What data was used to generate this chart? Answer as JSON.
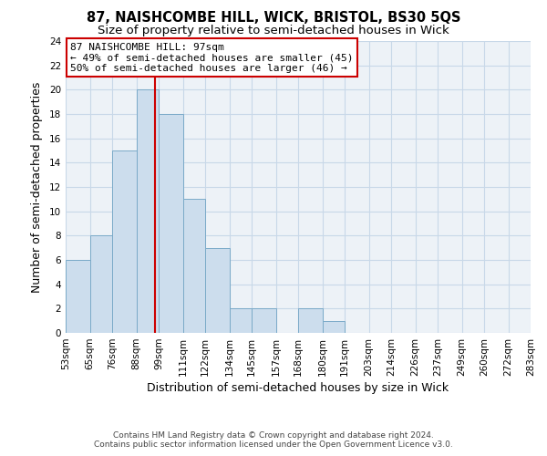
{
  "title_line1": "87, NAISHCOMBE HILL, WICK, BRISTOL, BS30 5QS",
  "title_line2": "Size of property relative to semi-detached houses in Wick",
  "xlabel": "Distribution of semi-detached houses by size in Wick",
  "ylabel": "Number of semi-detached properties",
  "bin_edges": [
    53,
    65,
    76,
    88,
    99,
    111,
    122,
    134,
    145,
    157,
    168,
    180,
    191,
    203,
    214,
    226,
    237,
    249,
    260,
    272,
    283
  ],
  "bin_labels": [
    "53sqm",
    "65sqm",
    "76sqm",
    "88sqm",
    "99sqm",
    "111sqm",
    "122sqm",
    "134sqm",
    "145sqm",
    "157sqm",
    "168sqm",
    "180sqm",
    "191sqm",
    "203sqm",
    "214sqm",
    "226sqm",
    "237sqm",
    "249sqm",
    "260sqm",
    "272sqm",
    "283sqm"
  ],
  "counts": [
    6,
    8,
    15,
    20,
    18,
    11,
    7,
    2,
    2,
    0,
    2,
    1,
    0,
    0,
    0,
    0,
    0,
    0,
    0,
    0
  ],
  "bar_color": "#ccdded",
  "bar_edge_color": "#7aaac8",
  "marker_value": 97,
  "marker_color": "#cc0000",
  "ylim": [
    0,
    24
  ],
  "yticks": [
    0,
    2,
    4,
    6,
    8,
    10,
    12,
    14,
    16,
    18,
    20,
    22,
    24
  ],
  "annotation_line1": "87 NAISHCOMBE HILL: 97sqm",
  "annotation_line2": "← 49% of semi-detached houses are smaller (45)",
  "annotation_line3": "50% of semi-detached houses are larger (46) →",
  "annotation_box_color": "#cc0000",
  "footer_line1": "Contains HM Land Registry data © Crown copyright and database right 2024.",
  "footer_line2": "Contains public sector information licensed under the Open Government Licence v3.0.",
  "grid_color": "#c8d8e8",
  "background_color": "#edf2f7",
  "title_fontsize": 10.5,
  "subtitle_fontsize": 9.5,
  "axis_label_fontsize": 9,
  "tick_fontsize": 7.5,
  "footer_fontsize": 6.5,
  "annot_fontsize": 8
}
